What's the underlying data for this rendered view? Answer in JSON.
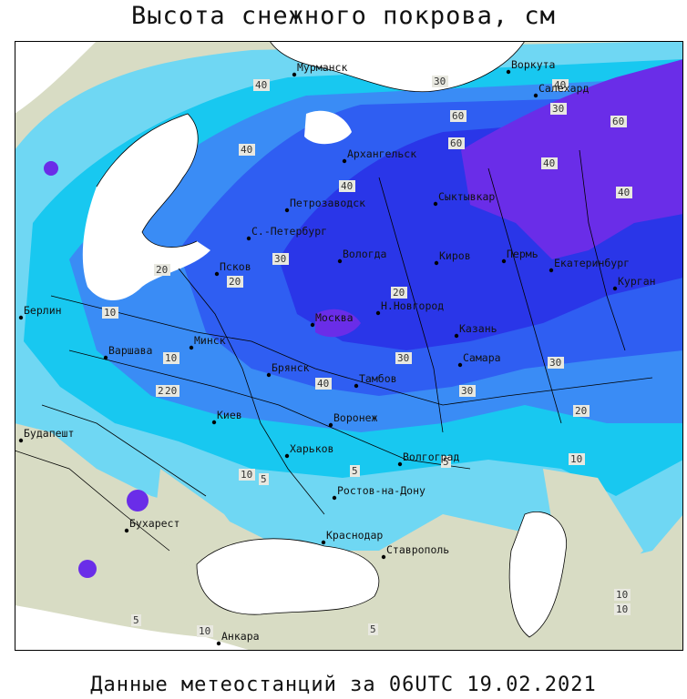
{
  "title": "Высота снежного покрова, см",
  "footer": "Данные метеостанций за 06UTC 19.02.2021",
  "colors": {
    "land_no_snow": "#d8dcc4",
    "sea": "#ffffff",
    "snow_light": "#6fd7f3",
    "snow_cyan": "#18c8f0",
    "snow_mid": "#3a8cf5",
    "snow_blue": "#2f5ef2",
    "snow_deep": "#2a36e8",
    "snow_violet": "#6a2de8",
    "border": "#000000"
  },
  "cities": [
    {
      "name": "Мурманск"
    },
    {
      "name": "Воркута"
    },
    {
      "name": "Салехард"
    },
    {
      "name": "Архангельск"
    },
    {
      "name": "Петрозаводск"
    },
    {
      "name": "Сыктывкар"
    },
    {
      "name": "С.-Петербург"
    },
    {
      "name": "Вологда"
    },
    {
      "name": "Киров"
    },
    {
      "name": "Пермь"
    },
    {
      "name": "Екатеринбург"
    },
    {
      "name": "Курган"
    },
    {
      "name": "Псков"
    },
    {
      "name": "Берлин"
    },
    {
      "name": "Минск"
    },
    {
      "name": "Москва"
    },
    {
      "name": "Н.Новгород"
    },
    {
      "name": "Казань"
    },
    {
      "name": "Варшава"
    },
    {
      "name": "Брянск"
    },
    {
      "name": "Тамбов"
    },
    {
      "name": "Самара"
    },
    {
      "name": "Киев"
    },
    {
      "name": "Воронеж"
    },
    {
      "name": "Будапешт"
    },
    {
      "name": "Харьков"
    },
    {
      "name": "Волгоград"
    },
    {
      "name": "Ростов-на-Дону"
    },
    {
      "name": "Бухарест"
    },
    {
      "name": "Краснодар"
    },
    {
      "name": "Ставрополь"
    },
    {
      "name": "Анкара"
    }
  ],
  "contour_labels": [
    {
      "text": "40"
    },
    {
      "text": "30"
    },
    {
      "text": "40"
    },
    {
      "text": "60"
    },
    {
      "text": "40"
    },
    {
      "text": "60"
    },
    {
      "text": "40"
    },
    {
      "text": "40"
    },
    {
      "text": "60"
    },
    {
      "text": "40"
    },
    {
      "text": "30"
    },
    {
      "text": "20"
    },
    {
      "text": "20"
    },
    {
      "text": "30"
    },
    {
      "text": "10"
    },
    {
      "text": "20"
    },
    {
      "text": "40"
    },
    {
      "text": "30"
    },
    {
      "text": "20"
    },
    {
      "text": "30"
    },
    {
      "text": "20"
    },
    {
      "text": "10"
    },
    {
      "text": "20"
    },
    {
      "text": "30"
    },
    {
      "text": "10"
    },
    {
      "text": "5"
    },
    {
      "text": "10"
    },
    {
      "text": "5"
    },
    {
      "text": "5"
    },
    {
      "text": "10"
    },
    {
      "text": "10"
    },
    {
      "text": "5"
    },
    {
      "text": "10"
    },
    {
      "text": "5"
    }
  ]
}
